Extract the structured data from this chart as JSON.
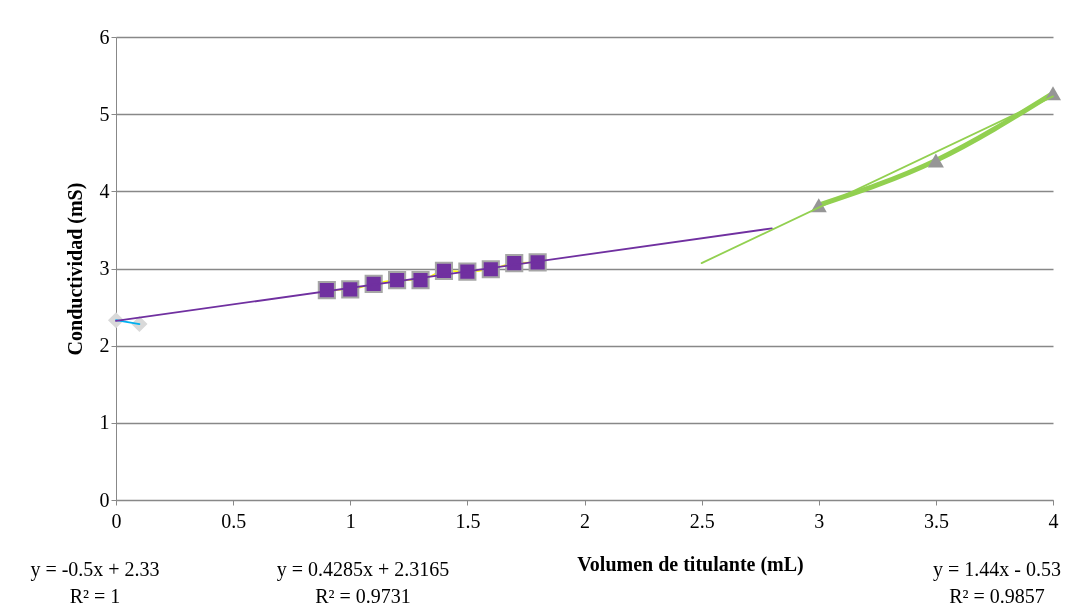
{
  "chart_data": {
    "type": "scatter",
    "xlabel": "Volumen de titulante (mL)",
    "ylabel": "Conductividad (mS)",
    "xlim": [
      0,
      4
    ],
    "xticks": [
      0,
      0.5,
      1,
      1.5,
      2,
      2.5,
      3,
      3.5,
      4
    ],
    "ylim": [
      0,
      6
    ],
    "yticks": [
      0,
      1,
      2,
      3,
      4,
      5,
      6
    ],
    "grid": "y",
    "series": [
      {
        "marker": "diamond",
        "color": "#d9d9d9",
        "x": [
          0,
          0.1
        ],
        "values": [
          2.33,
          2.28
        ]
      },
      {
        "type": "line",
        "marker": "square",
        "color": "#ffff00",
        "colors": [
          "#7030a0",
          "#7030a0",
          "#7030a0",
          "#7030a0",
          "#7030a0",
          "#7030a0",
          "#7030a0",
          "#7030a0",
          "#7030a0",
          "#7030a0"
        ],
        "x": [
          0.9,
          1.0,
          1.1,
          1.2,
          1.3,
          1.4,
          1.5,
          1.6,
          1.7,
          1.8
        ],
        "values": [
          2.72,
          2.73,
          2.8,
          2.85,
          2.85,
          2.97,
          2.96,
          2.99,
          3.07,
          3.08
        ]
      },
      {
        "type": "line",
        "marker": "triangle",
        "color": "#92d050",
        "colors": [
          "#969696",
          "#969696",
          "#969696"
        ],
        "x": [
          3,
          3.5,
          4
        ],
        "values": [
          3.82,
          4.4,
          5.27
        ]
      },
      {
        "type": "line",
        "marker": "none",
        "color": "#00b0f0",
        "x": [
          0,
          0.1
        ],
        "values": [
          2.33,
          2.28
        ]
      },
      {
        "type": "line",
        "marker": "none",
        "color": "#7030a0",
        "x": [
          0,
          2.8
        ],
        "values": [
          2.32,
          3.52
        ]
      },
      {
        "type": "line",
        "marker": "none",
        "color": "#92d050",
        "x": [
          2.5,
          4
        ],
        "values": [
          3.07,
          5.23
        ]
      }
    ],
    "annotations": [
      "y = -0.5x + 2.33",
      "R² = 1",
      "y = 0.4285x + 2.3165",
      "R² = 0.9731",
      "y = 1.44x - 0.53",
      "R² = 0.9857"
    ]
  }
}
